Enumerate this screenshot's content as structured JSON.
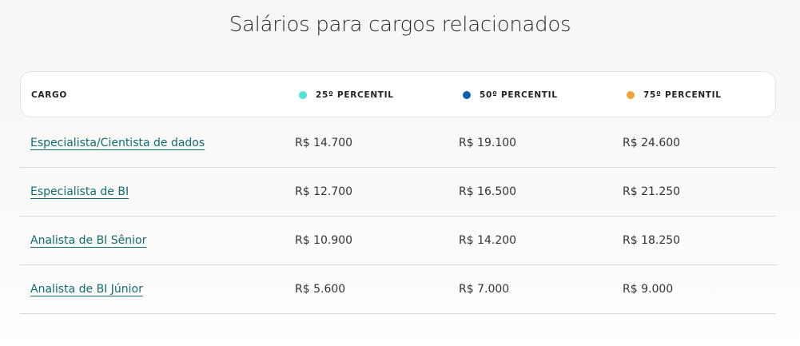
{
  "title": "Salários para cargos relacionados",
  "columns": [
    {
      "label": "CARGO"
    },
    {
      "label": "25º PERCENTIL",
      "color": "#4fe3d8"
    },
    {
      "label": "50º PERCENTIL",
      "color": "#0b5ea8"
    },
    {
      "label": "75º PERCENTIL",
      "color": "#eea43a"
    }
  ],
  "rows": [
    {
      "cargo": "Especialista/Cientista de dados",
      "p25": "R$ 14.700",
      "p50": "R$ 19.100",
      "p75": "R$ 24.600"
    },
    {
      "cargo": "Especialista de BI",
      "p25": "R$ 12.700",
      "p50": "R$ 16.500",
      "p75": "R$ 21.250"
    },
    {
      "cargo": "Analista de BI Sênior",
      "p25": "R$ 10.900",
      "p50": "R$ 14.200",
      "p75": "R$ 18.250"
    },
    {
      "cargo": "Analista de BI Júnior",
      "p25": "R$ 5.600",
      "p50": "R$ 7.000",
      "p75": "R$ 9.000"
    }
  ]
}
